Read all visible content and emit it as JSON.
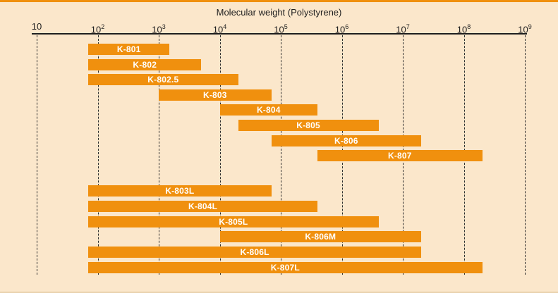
{
  "colors": {
    "accent_orange": "#F0900E",
    "background": "#FBE7CB",
    "axis": "#1F1F1F",
    "bar_label": "#FFFFFF"
  },
  "chart_data": {
    "type": "range-bar",
    "orientation": "horizontal",
    "x_scale": "log10",
    "title": "Molecular weight (Polystyrene)",
    "x_axis": {
      "min": 10,
      "max": 1000000000,
      "tick_exponents": [
        1,
        2,
        3,
        4,
        5,
        6,
        7,
        8,
        9
      ],
      "tick_labels": [
        "10",
        "10^2",
        "10^3",
        "10^4",
        "10^5",
        "10^6",
        "10^7",
        "10^8",
        "10^9"
      ],
      "gridlines": "dashed-vertical"
    },
    "groups": [
      {
        "bars": [
          {
            "label": "K-801",
            "range": [
              70,
              1500
            ]
          },
          {
            "label": "K-802",
            "range": [
              70,
              5000
            ]
          },
          {
            "label": "K-802.5",
            "range": [
              70,
              20000
            ]
          },
          {
            "label": "K-803",
            "range": [
              1000,
              70000
            ]
          },
          {
            "label": "K-804",
            "range": [
              10000,
              400000
            ]
          },
          {
            "label": "K-805",
            "range": [
              20000,
              4000000
            ]
          },
          {
            "label": "K-806",
            "range": [
              70000,
              20000000
            ]
          },
          {
            "label": "K-807",
            "range": [
              400000,
              200000000
            ]
          }
        ]
      },
      {
        "bars": [
          {
            "label": "K-803L",
            "range": [
              70,
              70000
            ]
          },
          {
            "label": "K-804L",
            "range": [
              70,
              400000
            ]
          },
          {
            "label": "K-805L",
            "range": [
              70,
              4000000
            ]
          },
          {
            "label": "K-806M",
            "range": [
              10000,
              20000000
            ]
          },
          {
            "label": "K-806L",
            "range": [
              70,
              20000000
            ]
          },
          {
            "label": "K-807L",
            "range": [
              70,
              200000000
            ]
          }
        ]
      }
    ]
  }
}
